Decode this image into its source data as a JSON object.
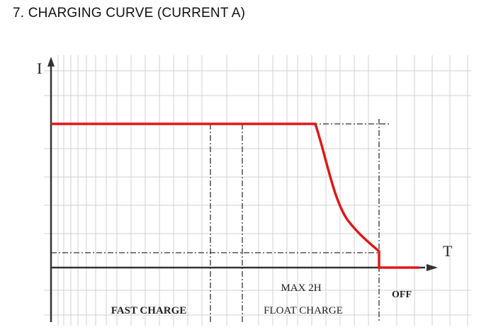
{
  "title": "7. CHARGING CURVE (CURRENT A)",
  "axes": {
    "y_label": "I",
    "x_label": "T"
  },
  "labels": {
    "max_time": "MAX 2H",
    "fast_charge": "FAST CHARGE",
    "float_charge": "FLOAT CHARGE",
    "off": "OFF"
  }
}
